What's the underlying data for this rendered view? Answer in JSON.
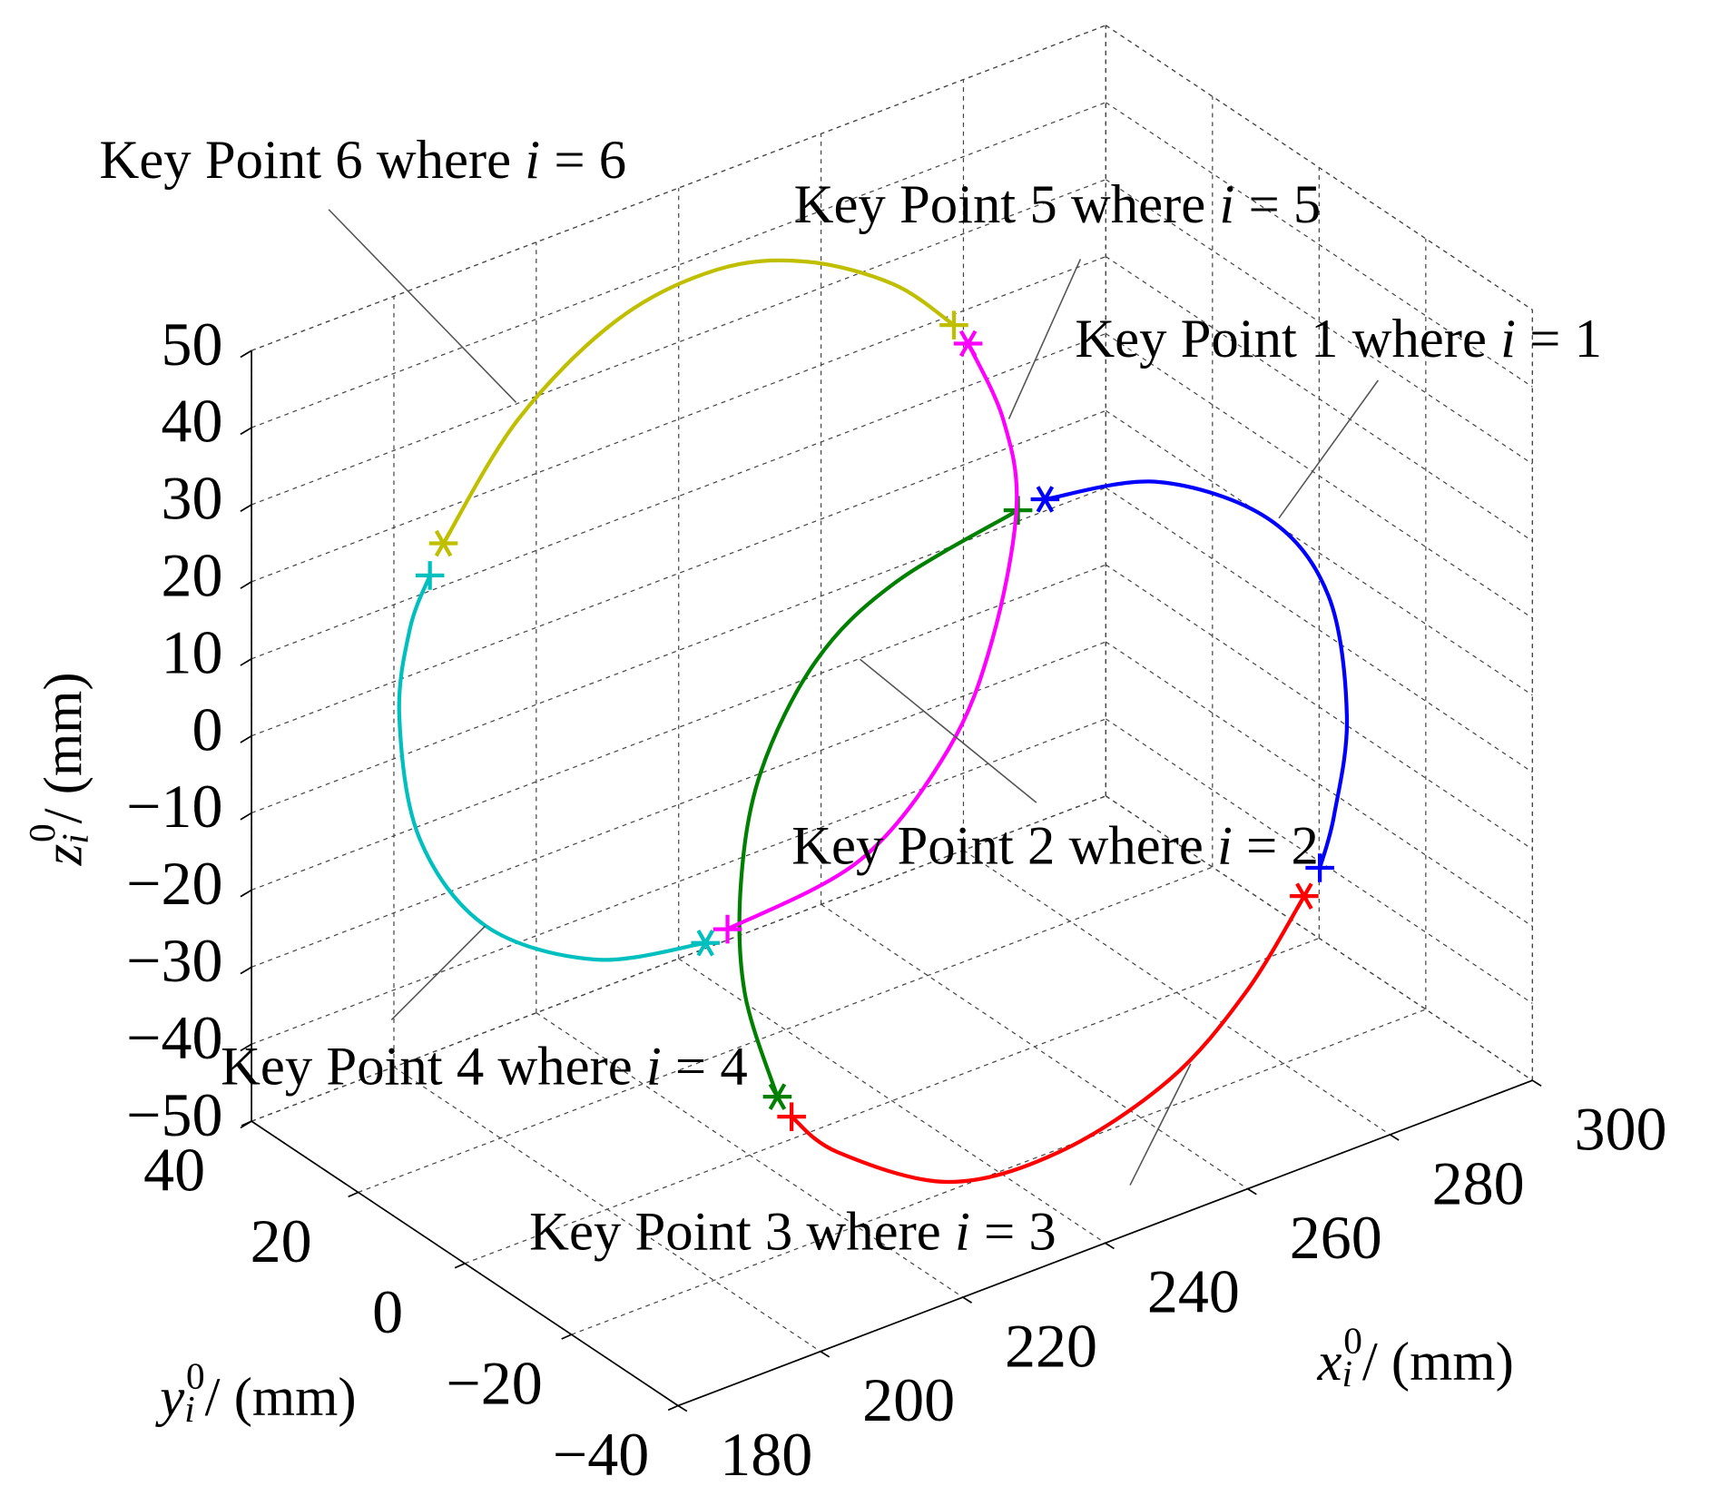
{
  "chart_data": {
    "type": "line3d",
    "xlabel": {
      "symbol": "x",
      "subscript": "i",
      "superscript": "0",
      "text": "/ (mm)"
    },
    "ylabel": {
      "symbol": "y",
      "subscript": "i",
      "superscript": "0",
      "text": "/ (mm)"
    },
    "zlabel": {
      "symbol": "z",
      "subscript": "i",
      "superscript": "0",
      "text": "/ (mm)"
    },
    "xlim": [
      180,
      300
    ],
    "ylim": [
      -40,
      40
    ],
    "zlim": [
      -50,
      50
    ],
    "xticks": [
      180,
      200,
      220,
      240,
      260,
      280,
      300
    ],
    "yticks": [
      {
        "value": -40,
        "label": "−40"
      },
      {
        "value": -20,
        "label": "−20"
      },
      0,
      20,
      40
    ],
    "zticks": [
      {
        "value": -50,
        "label": "−50"
      },
      {
        "value": -40,
        "label": "−40"
      },
      {
        "value": -30,
        "label": "−30"
      },
      {
        "value": -20,
        "label": "−20"
      },
      {
        "value": -10,
        "label": "−10"
      },
      0,
      10,
      20,
      30,
      40,
      50
    ],
    "grid": true,
    "series": [
      {
        "color": "#0000ff",
        "x": [
          261.5,
          277.3,
          292.8,
          301.3,
          303.9,
          302.1,
          300.1
        ],
        "y": [
          0,
          0,
          0,
          0,
          0,
          0,
          0
        ],
        "z": [
          20.5,
          17.2,
          7.0,
          -6.0,
          -22.6,
          -34.8,
          -40.9
        ]
      },
      {
        "color": "#ff0000",
        "x": [
          297.9,
          289.7,
          278.9,
          263.4,
          247.9,
          232.4,
          225.9
        ],
        "y": [
          0,
          0,
          0,
          0,
          0,
          0,
          0
        ],
        "z": [
          -43.8,
          -53.4,
          -61.0,
          -64.9,
          -63.3,
          -54.0,
          -47.1
        ]
      },
      {
        "color": "#008000",
        "x": [
          223.9,
          219.3,
          218.8,
          221.6,
          229.3,
          240.2,
          257.7
        ],
        "y": [
          0,
          0,
          0,
          0,
          0,
          0,
          0
        ],
        "z": [
          -43.8,
          -28.6,
          -14.1,
          -0.8,
          10.8,
          17.0,
          20.4
        ]
      },
      {
        "color": "#00bfbf",
        "x": [
          213.8,
          198.3,
          182.9,
          173.6,
          170.8,
          172.3,
          175.1
        ],
        "y": [
          0,
          0,
          0,
          0,
          0,
          0,
          0
        ],
        "z": [
          -20.3,
          -17.0,
          -7.2,
          7.5,
          24.2,
          35.1,
          41.0
        ]
      },
      {
        "color": "#bfbf00",
        "x": [
          177.0,
          187.5,
          201.4,
          215.4,
          227.8,
          240.2,
          248.7
        ],
        "y": [
          0,
          0,
          0,
          0,
          0,
          0,
          0
        ],
        "z": [
          44.5,
          56.9,
          64.9,
          66.5,
          63.2,
          55.9,
          47.6
        ]
      },
      {
        "color": "#ff00ff",
        "x": [
          250.7,
          255.6,
          257.5,
          254.1,
          247.9,
          235.5,
          216.9
        ],
        "y": [
          0,
          0,
          0,
          0,
          0,
          0,
          0
        ],
        "z": [
          44.5,
          33.0,
          20.9,
          4.9,
          -7.2,
          -17.2,
          -19.6
        ]
      }
    ],
    "annotations": [
      {
        "text": "Key Point 1 where i = 1"
      },
      {
        "text": "Key Point 2 where i = 2"
      },
      {
        "text": "Key Point 3 where i = 3"
      },
      {
        "text": "Key Point 4 where i = 4"
      },
      {
        "text": "Key Point 5 where i = 5"
      },
      {
        "text": "Key Point 6 where i = 6"
      }
    ]
  }
}
